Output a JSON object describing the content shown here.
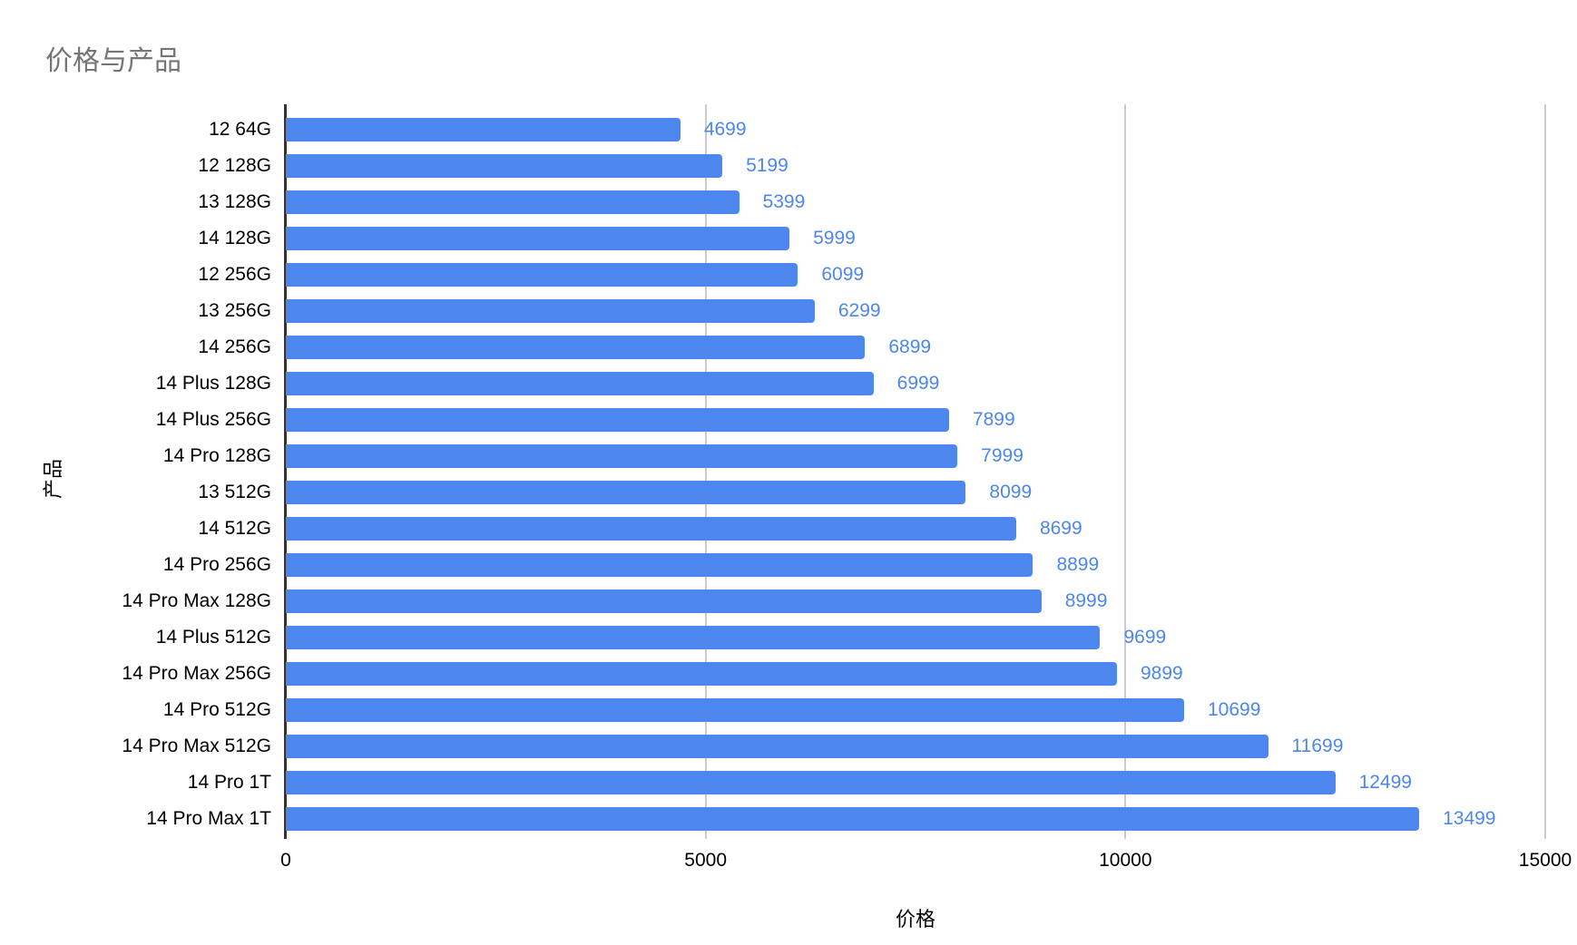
{
  "page": {
    "background": "#ffffff"
  },
  "chart_data": {
    "type": "bar",
    "orientation": "horizontal",
    "title": "价格与产品",
    "xlabel": "价格",
    "ylabel": "产品",
    "xlim": [
      0,
      15000
    ],
    "xticks": [
      0,
      5000,
      10000,
      15000
    ],
    "grid": "vertical-on",
    "legend": "none",
    "value_labels_shown": true,
    "categories": [
      "12 64G",
      "12 128G",
      "13 128G",
      "14 128G",
      "12 256G",
      "13 256G",
      "14 256G",
      "14 Plus 128G",
      "14 Plus 256G",
      "14 Pro 128G",
      "13 512G",
      "14 512G",
      "14 Pro 256G",
      "14 Pro Max 128G",
      "14 Plus 512G",
      "14 Pro Max 256G",
      "14 Pro 512G",
      "14 Pro Max 512G",
      "14 Pro 1T",
      "14 Pro Max 1T"
    ],
    "values": [
      4699,
      5199,
      5399,
      5999,
      6099,
      6299,
      6899,
      6999,
      7899,
      7999,
      8099,
      8699,
      8899,
      8999,
      9699,
      9899,
      10699,
      11699,
      12499,
      13499
    ],
    "colors": {
      "bar": "#4d86ec",
      "value_label": "#4d86ec",
      "title": "#757575",
      "axis_line": "#333333",
      "gridline": "#cccccc",
      "tick_label": "#000000"
    }
  }
}
